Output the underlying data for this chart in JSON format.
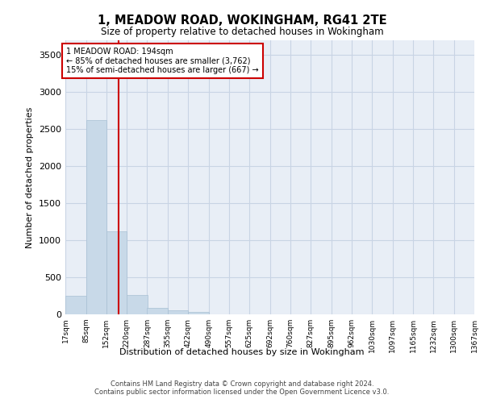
{
  "title": "1, MEADOW ROAD, WOKINGHAM, RG41 2TE",
  "subtitle": "Size of property relative to detached houses in Wokingham",
  "xlabel": "Distribution of detached houses by size in Wokingham",
  "ylabel": "Number of detached properties",
  "bar_color": "#c8d9e8",
  "bar_edge_color": "#a8c0d4",
  "grid_color": "#c8d4e4",
  "background_color": "#e8eef6",
  "property_line_x": 194,
  "property_line_color": "#cc0000",
  "annotation_text": "1 MEADOW ROAD: 194sqm\n← 85% of detached houses are smaller (3,762)\n15% of semi-detached houses are larger (667) →",
  "annotation_box_color": "#ffffff",
  "annotation_border_color": "#cc0000",
  "bin_edges": [
    17,
    85,
    152,
    220,
    287,
    355,
    422,
    490,
    557,
    625,
    692,
    760,
    827,
    895,
    962,
    1030,
    1097,
    1165,
    1232,
    1300,
    1367
  ],
  "bar_heights": [
    250,
    2625,
    1125,
    260,
    90,
    50,
    35,
    0,
    0,
    0,
    0,
    0,
    0,
    0,
    0,
    0,
    0,
    0,
    0,
    0
  ],
  "ylim": [
    0,
    3700
  ],
  "yticks": [
    0,
    500,
    1000,
    1500,
    2000,
    2500,
    3000,
    3500
  ],
  "footer_text": "Contains HM Land Registry data © Crown copyright and database right 2024.\nContains public sector information licensed under the Open Government Licence v3.0.",
  "tick_labels": [
    "17sqm",
    "85sqm",
    "152sqm",
    "220sqm",
    "287sqm",
    "355sqm",
    "422sqm",
    "490sqm",
    "557sqm",
    "625sqm",
    "692sqm",
    "760sqm",
    "827sqm",
    "895sqm",
    "962sqm",
    "1030sqm",
    "1097sqm",
    "1165sqm",
    "1232sqm",
    "1300sqm",
    "1367sqm"
  ]
}
